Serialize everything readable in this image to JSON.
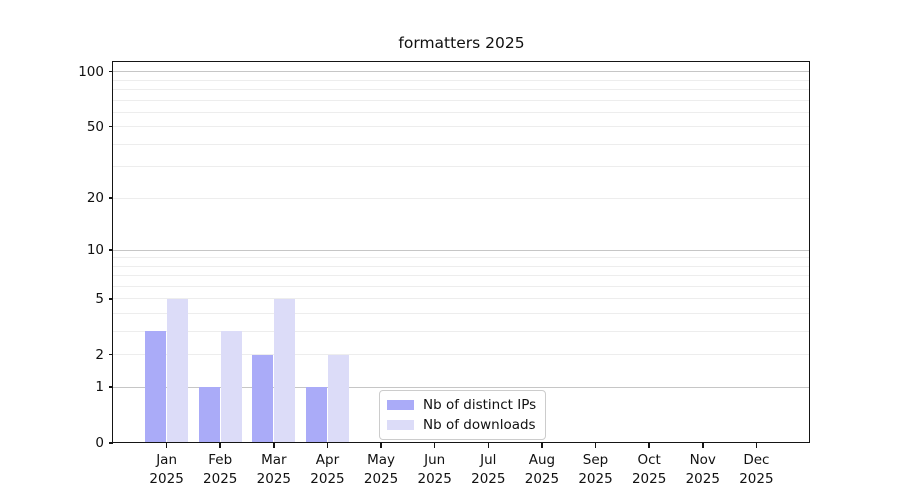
{
  "chart_data": {
    "type": "bar",
    "title": "formatters 2025",
    "year_label": "2025",
    "months": [
      "Jan",
      "Feb",
      "Mar",
      "Apr",
      "May",
      "Jun",
      "Jul",
      "Aug",
      "Sep",
      "Oct",
      "Nov",
      "Dec"
    ],
    "series": [
      {
        "name": "Nb of distinct IPs",
        "color": "#aaabf8",
        "values": [
          3,
          1,
          2,
          1,
          0,
          0,
          0,
          0,
          0,
          0,
          0,
          0
        ]
      },
      {
        "name": "Nb of downloads",
        "color": "#dcdcf8",
        "values": [
          5,
          3,
          5,
          2,
          0,
          0,
          0,
          0,
          0,
          0,
          0,
          0
        ]
      }
    ],
    "yscale": "log1p",
    "ylim": [
      0,
      113
    ],
    "yticks_labeled": [
      0,
      1,
      2,
      5,
      10,
      20,
      50,
      100
    ],
    "yticks_major_grid": [
      1,
      10,
      100
    ],
    "yticks_minor_grid": [
      2,
      3,
      4,
      5,
      6,
      7,
      8,
      9,
      20,
      30,
      40,
      50,
      60,
      70,
      80,
      90
    ],
    "grid": true,
    "legend": {
      "position": "lower-center"
    }
  }
}
